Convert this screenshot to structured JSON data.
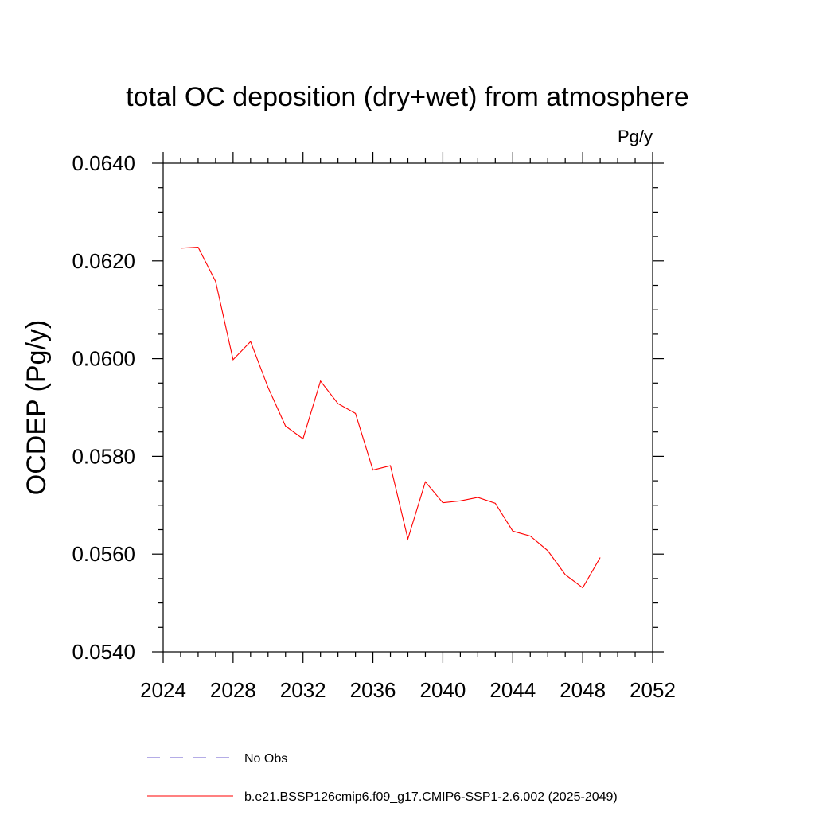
{
  "chart_data": {
    "type": "line",
    "title": "total OC deposition (dry+wet) from atmosphere",
    "units_label": "Pg/y",
    "ylabel": "OCDEP  (Pg/y)",
    "xlabel": "",
    "xlim": [
      2024,
      2052
    ],
    "ylim": [
      0.054,
      0.064
    ],
    "x_ticks": [
      2024,
      2028,
      2032,
      2036,
      2040,
      2044,
      2048,
      2052
    ],
    "x_tick_labels": [
      "2024",
      "2028",
      "2032",
      "2036",
      "2040",
      "2044",
      "2048",
      "2052"
    ],
    "y_ticks": [
      0.054,
      0.056,
      0.058,
      0.06,
      0.062,
      0.064
    ],
    "y_tick_labels": [
      "0.0540",
      "0.0560",
      "0.0580",
      "0.0600",
      "0.0620",
      "0.0640"
    ],
    "grid": false,
    "legend_position": "bottom",
    "legend": [
      {
        "label": "No Obs",
        "color": "#6a5acd",
        "dash": true
      },
      {
        "label": "b.e21.BSSP126cmip6.f09_g17.CMIP6-SSP1-2.6.002 (2025-2049)",
        "color": "#ff0000",
        "dash": false
      }
    ],
    "series": [
      {
        "name": "b.e21.BSSP126cmip6.f09_g17.CMIP6-SSP1-2.6.002 (2025-2049)",
        "color": "#ff0000",
        "x": [
          2025,
          2026,
          2027,
          2028,
          2029,
          2030,
          2031,
          2032,
          2033,
          2034,
          2035,
          2036,
          2037,
          2038,
          2039,
          2040,
          2041,
          2042,
          2043,
          2044,
          2045,
          2046,
          2047,
          2048,
          2049
        ],
        "values": [
          0.06226,
          0.06228,
          0.06158,
          0.05998,
          0.06035,
          0.05941,
          0.05862,
          0.05836,
          0.05954,
          0.05908,
          0.05888,
          0.05772,
          0.05781,
          0.05631,
          0.05748,
          0.05705,
          0.05709,
          0.05716,
          0.05704,
          0.05647,
          0.05637,
          0.05607,
          0.05558,
          0.05531,
          0.05593
        ]
      }
    ]
  }
}
